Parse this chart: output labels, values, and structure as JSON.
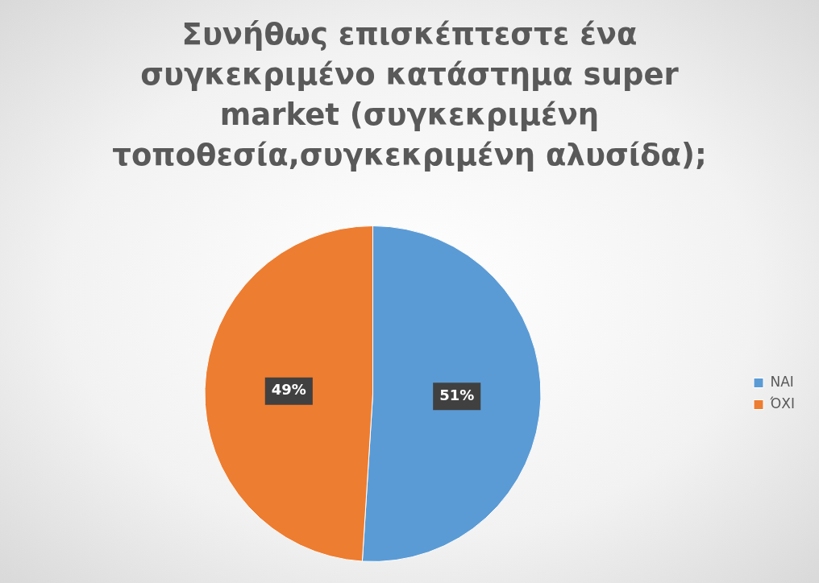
{
  "chart_data": {
    "type": "pie",
    "title": "Συνήθως επισκέπτεστε ένα συγκεκριμένο κατάστημα super market (συγκεκριμένη τοποθεσία,συγκεκριμένη αλυσίδα);",
    "categories": [
      "ΝΑΙ",
      "ΌΧΙ"
    ],
    "values": [
      51,
      49
    ],
    "colors": [
      "#5b9bd5",
      "#ed7d31"
    ],
    "value_labels": [
      "51%",
      "49%"
    ],
    "legend": "right"
  }
}
